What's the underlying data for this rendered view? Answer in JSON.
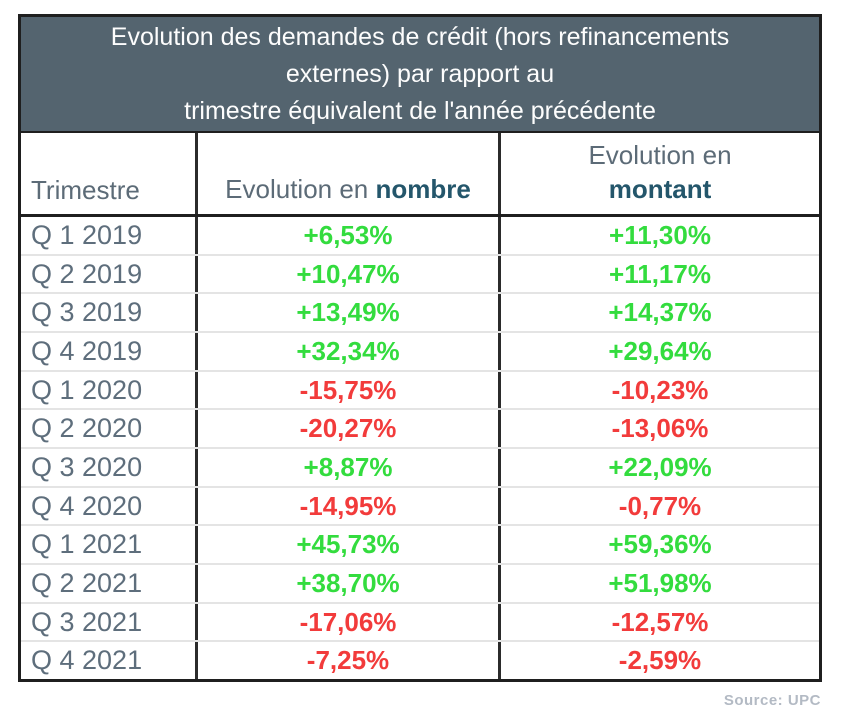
{
  "table": {
    "title_lines": [
      "Evolution des demandes de crédit (hors refinancements",
      "externes) par rapport au",
      "trimestre équivalent de l'année précédente"
    ],
    "columns": [
      {
        "label": "Trimestre"
      },
      {
        "prefix": "Evolution en ",
        "bold": "nombre"
      },
      {
        "prefix": "Evolution en",
        "bold": "montant"
      }
    ],
    "rows": [
      {
        "quarter": "Q 1 2019",
        "nombre": "+6,53%",
        "montant": "+11,30%"
      },
      {
        "quarter": "Q 2 2019",
        "nombre": "+10,47%",
        "montant": "+11,17%"
      },
      {
        "quarter": "Q 3 2019",
        "nombre": "+13,49%",
        "montant": "+14,37%"
      },
      {
        "quarter": "Q 4 2019",
        "nombre": "+32,34%",
        "montant": "+29,64%"
      },
      {
        "quarter": "Q 1 2020",
        "nombre": "-15,75%",
        "montant": "-10,23%"
      },
      {
        "quarter": "Q 2 2020",
        "nombre": "-20,27%",
        "montant": "-13,06%"
      },
      {
        "quarter": "Q 3 2020",
        "nombre": "+8,87%",
        "montant": "+22,09%"
      },
      {
        "quarter": "Q 4 2020",
        "nombre": "-14,95%",
        "montant": "-0,77%"
      },
      {
        "quarter": "Q 1 2021",
        "nombre": "+45,73%",
        "montant": "+59,36%"
      },
      {
        "quarter": "Q 2 2021",
        "nombre": "+38,70%",
        "montant": "+51,98%"
      },
      {
        "quarter": "Q 3 2021",
        "nombre": "-17,06%",
        "montant": "-12,57%"
      },
      {
        "quarter": "Q 4 2021",
        "nombre": "-7,25%",
        "montant": "-2,59%"
      }
    ]
  },
  "source": "Source: UPC",
  "colors": {
    "positive": "#33DC3E",
    "negative": "#F23B3B",
    "header_bg": "#54646F",
    "title_text": "#FDFDFD",
    "quarter_text": "#5E6E7C",
    "header_text": "#5C6B77",
    "header_bold_text": "#24566B",
    "source_text": "#B3BAC4"
  },
  "chart_data": {
    "type": "table",
    "title": "Evolution des demandes de crédit (hors refinancements externes) par rapport au trimestre équivalent de l'année précédente",
    "columns": [
      "Trimestre",
      "Evolution en nombre",
      "Evolution en montant"
    ],
    "categories": [
      "Q 1 2019",
      "Q 2 2019",
      "Q 3 2019",
      "Q 4 2019",
      "Q 1 2020",
      "Q 2 2020",
      "Q 3 2020",
      "Q 4 2020",
      "Q 1 2021",
      "Q 2 2021",
      "Q 3 2021",
      "Q 4 2021"
    ],
    "series": [
      {
        "name": "Evolution en nombre",
        "unit": "%",
        "values": [
          6.53,
          10.47,
          13.49,
          32.34,
          -15.75,
          -20.27,
          8.87,
          -14.95,
          45.73,
          38.7,
          -17.06,
          -7.25
        ]
      },
      {
        "name": "Evolution en montant",
        "unit": "%",
        "values": [
          11.3,
          11.17,
          14.37,
          29.64,
          -10.23,
          -13.06,
          22.09,
          -0.77,
          59.36,
          51.98,
          -12.57,
          -2.59
        ]
      }
    ],
    "legend_position": "none",
    "grid": false,
    "source": "Source: UPC"
  }
}
